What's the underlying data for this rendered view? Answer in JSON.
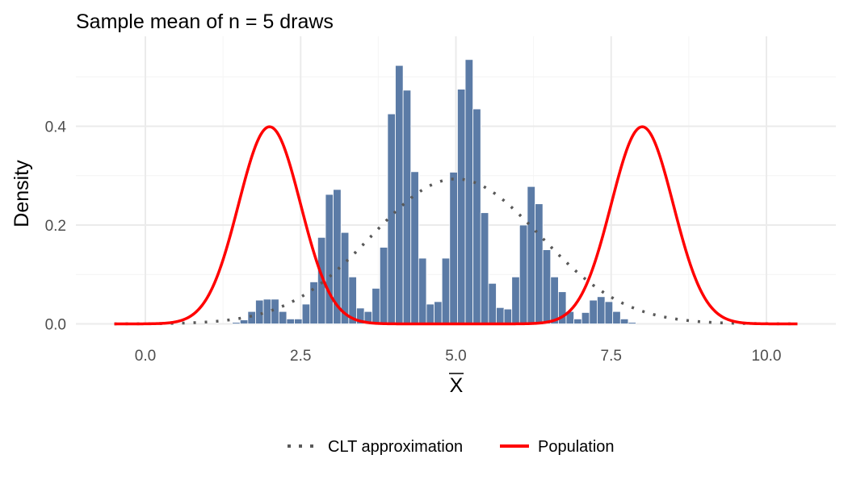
{
  "chart_data": {
    "type": "histogram",
    "title": "Sample mean of n = 5 draws",
    "xlabel": "X",
    "xlabel_overline": true,
    "ylabel": "Density",
    "xlim": [
      -0.6,
      10.6
    ],
    "ylim": [
      0,
      0.55
    ],
    "x_ticks": [
      0.0,
      2.5,
      5.0,
      7.5,
      10.0
    ],
    "x_tick_labels": [
      "0.0",
      "2.5",
      "5.0",
      "7.5",
      "10.0"
    ],
    "y_ticks": [
      0.0,
      0.2,
      0.4
    ],
    "y_tick_labels": [
      "0.0",
      "0.2",
      "0.4"
    ],
    "grid": true,
    "legend_position": "bottom",
    "histogram": {
      "color": "#5b7ba6",
      "edge_color": "#ffffff",
      "bin_width": 0.125,
      "bins_start": 1.4,
      "values": [
        0.003,
        0.008,
        0.025,
        0.048,
        0.05,
        0.05,
        0.025,
        0.01,
        0.01,
        0.04,
        0.085,
        0.175,
        0.262,
        0.272,
        0.185,
        0.095,
        0.032,
        0.025,
        0.072,
        0.155,
        0.425,
        0.523,
        0.473,
        0.308,
        0.133,
        0.04,
        0.045,
        0.133,
        0.307,
        0.475,
        0.535,
        0.435,
        0.225,
        0.082,
        0.033,
        0.03,
        0.095,
        0.2,
        0.278,
        0.243,
        0.15,
        0.095,
        0.065,
        0.025,
        0.01,
        0.023,
        0.048,
        0.055,
        0.045,
        0.025,
        0.01,
        0.003
      ]
    },
    "series": [
      {
        "name": "CLT approximation",
        "style": "dotted",
        "color": "#595959",
        "distribution": "normal",
        "mean": 5.0,
        "sd": 1.36
      },
      {
        "name": "Population",
        "style": "solid",
        "color": "#ff0000",
        "distribution": "mixture-of-normals",
        "components": [
          {
            "weight": 0.5,
            "mean": 2.0,
            "sd": 0.5
          },
          {
            "weight": 0.5,
            "mean": 8.0,
            "sd": 0.5
          }
        ],
        "x_range": [
          -0.5,
          10.5
        ]
      }
    ],
    "legend": [
      {
        "label": "CLT approximation",
        "style": "dotted",
        "color": "#595959"
      },
      {
        "label": "Population",
        "style": "solid",
        "color": "#ff0000"
      }
    ]
  }
}
